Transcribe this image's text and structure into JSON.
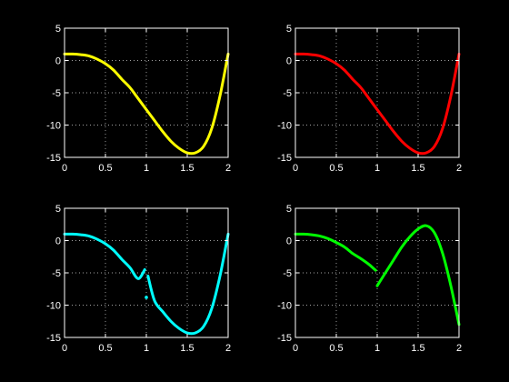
{
  "figure": {
    "background": "#000000",
    "foreground": "#ffffff"
  },
  "chart_data": [
    {
      "type": "line",
      "title": "",
      "xlabel": "",
      "ylabel": "",
      "xlim": [
        0,
        2
      ],
      "ylim": [
        -15,
        5
      ],
      "xticks": [
        "0",
        "0.5",
        "1",
        "1.5",
        "2"
      ],
      "yticks": [
        "5",
        "0",
        "-5",
        "-10",
        "-15"
      ],
      "grid": true,
      "color": "#ffff00",
      "series": [
        {
          "x": [
            0,
            0.1,
            0.2,
            0.3,
            0.4,
            0.5,
            0.6,
            0.7,
            0.8,
            0.9,
            1.0,
            1.1,
            1.2,
            1.3,
            1.4,
            1.5,
            1.6,
            1.7,
            1.8,
            1.9,
            2.0
          ],
          "values": [
            1.0,
            1.0,
            0.9,
            0.7,
            0.2,
            -0.5,
            -1.5,
            -2.9,
            -4.2,
            -5.9,
            -7.6,
            -9.3,
            -11.0,
            -12.5,
            -13.6,
            -14.3,
            -14.3,
            -13.3,
            -10.5,
            -5.5,
            1.0
          ]
        }
      ]
    },
    {
      "type": "line",
      "title": "",
      "xlabel": "",
      "ylabel": "",
      "xlim": [
        0,
        2
      ],
      "ylim": [
        -15,
        5
      ],
      "xticks": [
        "0",
        "0.5",
        "1",
        "1.5",
        "2"
      ],
      "yticks": [
        "5",
        "0",
        "-5",
        "-10",
        "-15"
      ],
      "grid": true,
      "color": "#ff0000",
      "series": [
        {
          "x": [
            0,
            0.1,
            0.2,
            0.3,
            0.4,
            0.5,
            0.6,
            0.7,
            0.8,
            0.9,
            1.0,
            1.1,
            1.2,
            1.3,
            1.4,
            1.5,
            1.6,
            1.7,
            1.8,
            1.9,
            2.0
          ],
          "values": [
            1.0,
            1.0,
            0.9,
            0.7,
            0.2,
            -0.5,
            -1.5,
            -2.9,
            -4.2,
            -5.9,
            -7.6,
            -9.3,
            -11.0,
            -12.5,
            -13.6,
            -14.3,
            -14.3,
            -13.3,
            -10.5,
            -5.5,
            1.0
          ]
        }
      ]
    },
    {
      "type": "line",
      "title": "",
      "xlabel": "",
      "ylabel": "",
      "xlim": [
        0,
        2
      ],
      "ylim": [
        -15,
        5
      ],
      "xticks": [
        "0",
        "0.5",
        "1",
        "1.5",
        "2"
      ],
      "yticks": [
        "5",
        "0",
        "-5",
        "-10",
        "-15"
      ],
      "grid": true,
      "color": "#00ffff",
      "series": [
        {
          "x": [
            0,
            0.1,
            0.2,
            0.3,
            0.4,
            0.5,
            0.6,
            0.7,
            0.8,
            0.9,
            0.98
          ],
          "values": [
            1.0,
            1.0,
            0.9,
            0.7,
            0.2,
            -0.5,
            -1.5,
            -2.9,
            -4.2,
            -5.9,
            -4.5
          ]
        },
        {
          "x": [
            1.0
          ],
          "values": [
            -8.8
          ]
        },
        {
          "x": [
            1.02,
            1.1,
            1.2,
            1.3,
            1.4,
            1.5,
            1.6,
            1.7,
            1.8,
            1.9,
            2.0
          ],
          "values": [
            -5.5,
            -9.3,
            -11.0,
            -12.5,
            -13.6,
            -14.3,
            -14.3,
            -13.3,
            -10.5,
            -5.5,
            1.0
          ]
        }
      ]
    },
    {
      "type": "line",
      "title": "",
      "xlabel": "",
      "ylabel": "",
      "xlim": [
        0,
        2
      ],
      "ylim": [
        -15,
        5
      ],
      "xticks": [
        "0",
        "0.5",
        "1",
        "1.5",
        "2"
      ],
      "yticks": [
        "5",
        "0",
        "-5",
        "-10",
        "-15"
      ],
      "grid": true,
      "color": "#00ff00",
      "series": [
        {
          "x": [
            0,
            0.1,
            0.2,
            0.3,
            0.4,
            0.5,
            0.6,
            0.7,
            0.8,
            0.9,
            0.98
          ],
          "values": [
            1.0,
            1.0,
            0.9,
            0.7,
            0.3,
            -0.3,
            -1.0,
            -2.0,
            -2.8,
            -3.7,
            -4.6
          ]
        },
        {
          "x": [
            1.0,
            1.1,
            1.2,
            1.3,
            1.4,
            1.5,
            1.6,
            1.7,
            1.8,
            1.9,
            2.0
          ],
          "values": [
            -7.0,
            -5.0,
            -3.0,
            -1.0,
            0.6,
            1.8,
            2.3,
            1.2,
            -2.0,
            -7.0,
            -13.0
          ]
        }
      ]
    }
  ]
}
